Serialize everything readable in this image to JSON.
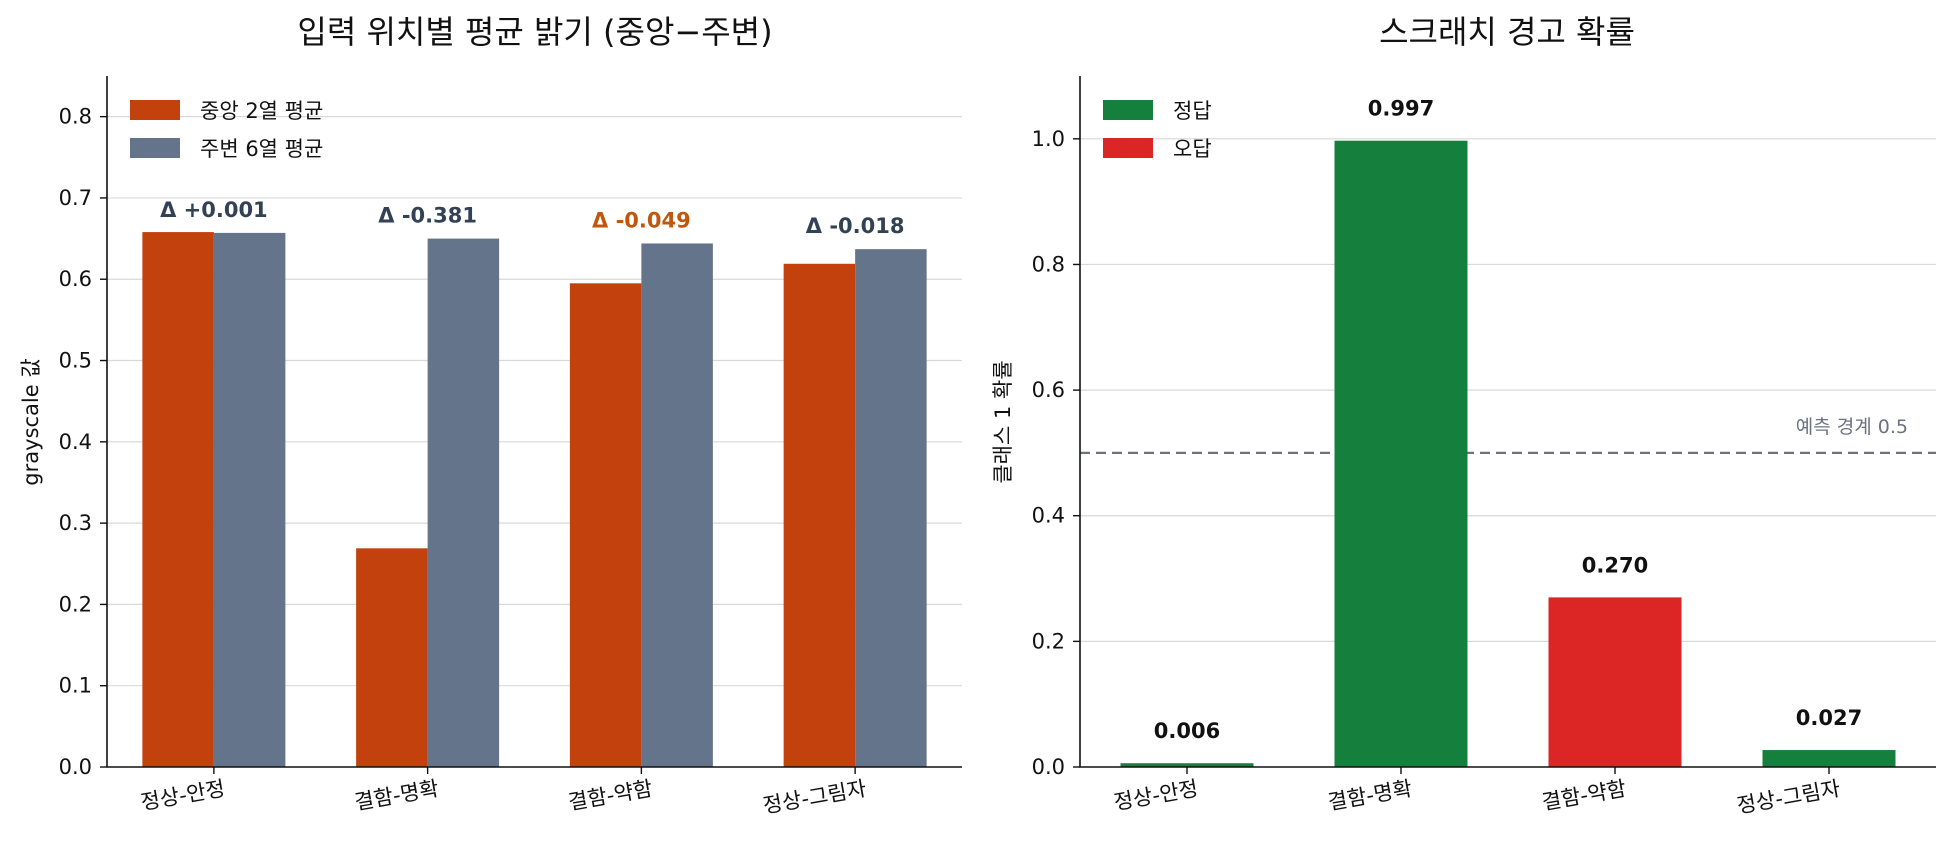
{
  "chart_data": [
    {
      "type": "bar",
      "title": "입력 위치별 평균 밝기 (중앙−주변)",
      "ylabel": "grayscale 값",
      "ylim": [
        0,
        0.85
      ],
      "yticks": [
        "0.0",
        "0.1",
        "0.2",
        "0.3",
        "0.4",
        "0.5",
        "0.6",
        "0.7",
        "0.8"
      ],
      "grid": true,
      "legend_position": "top-left",
      "categories": [
        "정상-안정",
        "결함-명확",
        "결함-약함",
        "정상-그림자"
      ],
      "series": [
        {
          "name": "중앙 2열 평균",
          "color": "#c2410c",
          "values": [
            0.658,
            0.269,
            0.595,
            0.619
          ]
        },
        {
          "name": "주변 6열 평균",
          "color": "#64748b",
          "values": [
            0.657,
            0.65,
            0.644,
            0.637
          ]
        }
      ],
      "annotations": [
        {
          "text": "Δ +0.001",
          "color": "#334155",
          "above": 0.657
        },
        {
          "text": "Δ -0.381",
          "color": "#334155",
          "above": 0.65
        },
        {
          "text": "Δ -0.049",
          "color": "#c2570c",
          "above": 0.644
        },
        {
          "text": "Δ -0.018",
          "color": "#334155",
          "above": 0.637
        }
      ]
    },
    {
      "type": "bar",
      "title": "스크래치 경고 확률",
      "ylabel": "클래스 1 확률",
      "ylim": [
        0,
        1.1
      ],
      "yticks": [
        "0.0",
        "0.2",
        "0.4",
        "0.6",
        "0.8",
        "1.0"
      ],
      "grid": true,
      "legend_position": "top-left",
      "categories": [
        "정상-안정",
        "결함-명확",
        "결함-약함",
        "정상-그림자"
      ],
      "values": [
        0.006,
        0.997,
        0.27,
        0.027
      ],
      "value_labels": [
        "0.006",
        "0.997",
        "0.270",
        "0.027"
      ],
      "bar_status": [
        "정답",
        "정답",
        "오답",
        "정답"
      ],
      "legend": [
        {
          "name": "정답",
          "color": "#15803d"
        },
        {
          "name": "오답",
          "color": "#dc2626"
        }
      ],
      "threshold": {
        "value": 0.5,
        "label": "예측 경계 0.5",
        "color": "#6b7280"
      }
    }
  ]
}
